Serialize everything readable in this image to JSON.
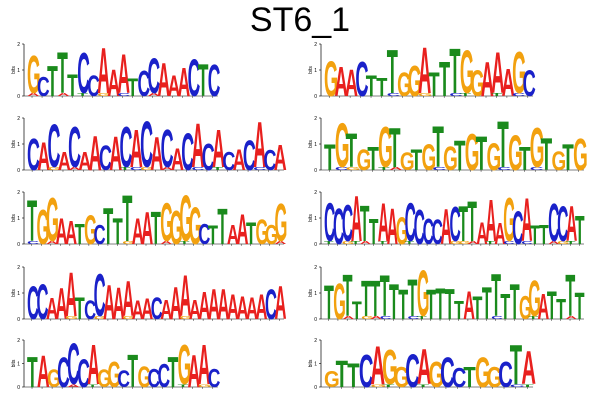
{
  "title": "ST6_1",
  "colors": {
    "A": "#e8201e",
    "C": "#1a21c9",
    "G": "#f2a10f",
    "T": "#1a8a1c"
  },
  "axis": {
    "ylabel": "bits",
    "yticks": [
      "0",
      "1",
      "2"
    ]
  },
  "logos": [
    {
      "id": 1,
      "consensus": "GCTTTCCAAATCCAAACTC"
    },
    {
      "id": 2,
      "consensus": "GAACTTTGGATTTGGAAAGC"
    },
    {
      "id": 3,
      "consensus": "CACACAACACACACACACACACACA"
    },
    {
      "id": 4,
      "consensus": "TGTGTGTGTGTGTGTGTGTGTGTG"
    },
    {
      "id": 5,
      "consensus": "TGGAATGCTTTAATGGGGCTTAATGGG"
    },
    {
      "id": 6,
      "consensus": "CCCATTAAGCCCCACTTAAAGCATTCCAT"
    },
    {
      "id": 7,
      "consensus": "CCAAATCCAAAAACAAAAAAAAAAACA"
    },
    {
      "id": 8,
      "consensus": "TGTTTTTTTTGTTTTATTTTTGGATTTT"
    },
    {
      "id": 9,
      "consensus": "TAGCCCAGGCTGCCTGAAC"
    },
    {
      "id": 10,
      "consensus": "GTTCAGGCAGCCTGGCTA"
    }
  ]
}
